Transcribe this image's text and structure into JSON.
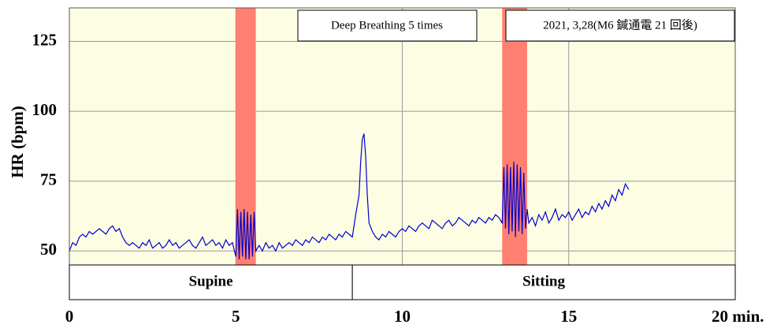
{
  "chart_data": {
    "type": "line",
    "ylabel": "HR (bpm)",
    "annotations": [
      "Deep Breathing 5 times",
      "2021, 3,28(M6 鍼通電 21 回後)"
    ],
    "xlim": [
      0,
      20
    ],
    "ylim": [
      45,
      137
    ],
    "xticks": [
      0,
      5,
      10,
      15,
      {
        "value": 20,
        "label": "20 min."
      }
    ],
    "yticks": [
      50,
      75,
      100,
      125
    ],
    "grid": true,
    "color": "#0000cc",
    "highlight_color": "#ff8070",
    "highlights": [
      [
        5,
        5.6
      ],
      [
        13,
        13.75
      ]
    ],
    "phases": [
      {
        "label": "Supine",
        "start": 0,
        "end": 8.5
      },
      {
        "label": "Sitting",
        "start": 8.5,
        "end": 20
      }
    ],
    "x": [
      0,
      0.1,
      0.2,
      0.3,
      0.4,
      0.5,
      0.6,
      0.7,
      0.8,
      0.9,
      1,
      1.1,
      1.2,
      1.3,
      1.4,
      1.5,
      1.6,
      1.7,
      1.8,
      1.9,
      2,
      2.1,
      2.2,
      2.3,
      2.4,
      2.5,
      2.6,
      2.7,
      2.8,
      2.9,
      3,
      3.1,
      3.2,
      3.3,
      3.4,
      3.5,
      3.6,
      3.7,
      3.8,
      3.9,
      4,
      4.1,
      4.2,
      4.3,
      4.4,
      4.5,
      4.6,
      4.7,
      4.8,
      4.9,
      5,
      5.05,
      5.1,
      5.15,
      5.2,
      5.25,
      5.3,
      5.35,
      5.4,
      5.45,
      5.5,
      5.55,
      5.6,
      5.7,
      5.8,
      5.9,
      6,
      6.1,
      6.2,
      6.3,
      6.4,
      6.5,
      6.6,
      6.7,
      6.8,
      6.9,
      7,
      7.1,
      7.2,
      7.3,
      7.4,
      7.5,
      7.6,
      7.7,
      7.8,
      7.9,
      8,
      8.1,
      8.2,
      8.3,
      8.4,
      8.5,
      8.6,
      8.7,
      8.75,
      8.8,
      8.85,
      8.9,
      8.95,
      9,
      9.1,
      9.2,
      9.3,
      9.4,
      9.5,
      9.6,
      9.7,
      9.8,
      9.9,
      10,
      10.1,
      10.2,
      10.3,
      10.4,
      10.5,
      10.6,
      10.7,
      10.8,
      10.9,
      11,
      11.1,
      11.2,
      11.3,
      11.4,
      11.5,
      11.6,
      11.7,
      11.8,
      11.9,
      12,
      12.1,
      12.2,
      12.3,
      12.4,
      12.5,
      12.6,
      12.7,
      12.8,
      12.9,
      13,
      13.05,
      13.1,
      13.15,
      13.2,
      13.25,
      13.3,
      13.35,
      13.4,
      13.45,
      13.5,
      13.55,
      13.6,
      13.65,
      13.7,
      13.75,
      13.8,
      13.9,
      14,
      14.1,
      14.2,
      14.3,
      14.4,
      14.5,
      14.6,
      14.7,
      14.8,
      14.9,
      15,
      15.1,
      15.2,
      15.3,
      15.4,
      15.5,
      15.6,
      15.7,
      15.8,
      15.9,
      16,
      16.1,
      16.2,
      16.3,
      16.4,
      16.5,
      16.6,
      16.7,
      16.8
    ],
    "values": [
      50,
      53,
      52,
      55,
      56,
      55,
      57,
      56,
      57,
      58,
      57,
      56,
      58,
      59,
      57,
      58,
      55,
      53,
      52,
      53,
      52,
      51,
      53,
      52,
      54,
      51,
      52,
      53,
      51,
      52,
      54,
      52,
      53,
      51,
      52,
      53,
      54,
      52,
      51,
      53,
      55,
      52,
      53,
      54,
      52,
      53,
      51,
      54,
      52,
      53,
      48,
      65,
      47,
      64,
      48,
      65,
      47,
      64,
      47,
      63,
      48,
      64,
      50,
      52,
      50,
      53,
      51,
      52,
      50,
      53,
      51,
      52,
      53,
      52,
      54,
      53,
      52,
      54,
      53,
      55,
      54,
      53,
      55,
      54,
      56,
      55,
      54,
      56,
      55,
      57,
      56,
      55,
      63,
      70,
      82,
      90,
      92,
      84,
      70,
      60,
      57,
      55,
      54,
      56,
      55,
      57,
      56,
      55,
      57,
      58,
      57,
      59,
      58,
      57,
      59,
      60,
      59,
      58,
      61,
      60,
      59,
      58,
      60,
      61,
      59,
      60,
      62,
      61,
      60,
      59,
      61,
      60,
      62,
      61,
      60,
      62,
      61,
      63,
      62,
      60,
      80,
      58,
      81,
      56,
      80,
      57,
      82,
      55,
      81,
      57,
      80,
      56,
      78,
      58,
      65,
      60,
      62,
      59,
      63,
      61,
      64,
      60,
      62,
      65,
      61,
      63,
      62,
      64,
      61,
      63,
      65,
      62,
      64,
      63,
      66,
      64,
      67,
      65,
      68,
      66,
      70,
      68,
      72,
      70,
      74,
      72
    ]
  }
}
